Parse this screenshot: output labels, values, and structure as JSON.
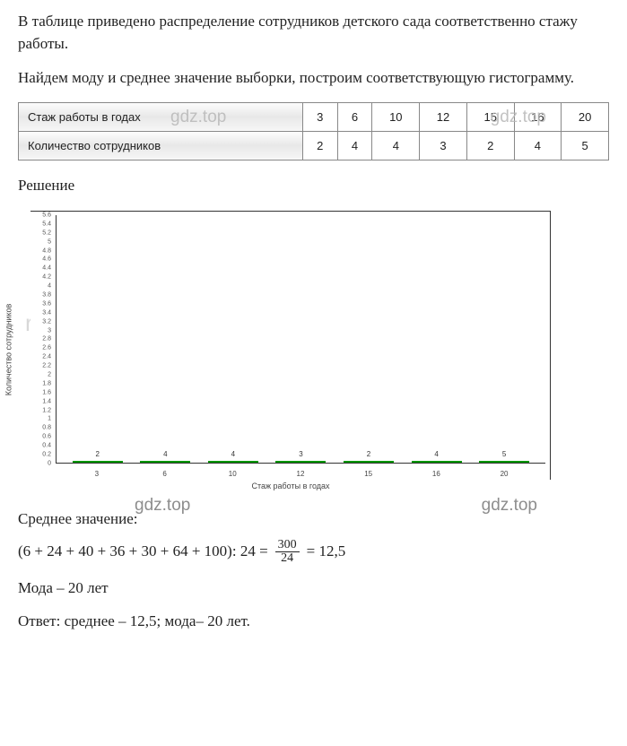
{
  "intro": {
    "p1": "В таблице приведено распределение сотрудников детского сада соответственно стажу работы.",
    "p2": "Найдем моду и среднее значение выборки, построим соответствующую гистограмму."
  },
  "table": {
    "row1_label": "Стаж работы в годах",
    "row2_label": "Количество сотрудников",
    "years": [
      "3",
      "6",
      "10",
      "12",
      "15",
      "16",
      "20"
    ],
    "counts": [
      "2",
      "4",
      "4",
      "3",
      "2",
      "4",
      "5"
    ]
  },
  "solution_label": "Решение",
  "chart": {
    "type": "bar",
    "categories": [
      "3",
      "6",
      "10",
      "12",
      "15",
      "16",
      "20"
    ],
    "values": [
      2,
      4,
      4,
      3,
      2,
      4,
      5
    ],
    "ymax": 5.6,
    "ytick_step": 0.2,
    "bar_color": "#00c800",
    "bar_border": "#009400",
    "background_color": "#ffffff",
    "xlabel": "Стаж работы в годах",
    "ylabel": "Количество сотрудников",
    "label_fontsize": 9,
    "value_fontsize": 8,
    "bar_width_ratio": 0.7
  },
  "watermarks": {
    "gdz": "gdz.top",
    "reshak": "reshak"
  },
  "mean": {
    "label": "Среднее значение:",
    "lhs": "(6 + 24 + 40 + 36 + 30 + 64 + 100): 24 =",
    "frac_num": "300",
    "frac_den": "24",
    "rhs": "= 12,5"
  },
  "mode_line": "Мода – 20  лет",
  "answer": "Ответ: среднее –  12,5; мода– 20 лет."
}
